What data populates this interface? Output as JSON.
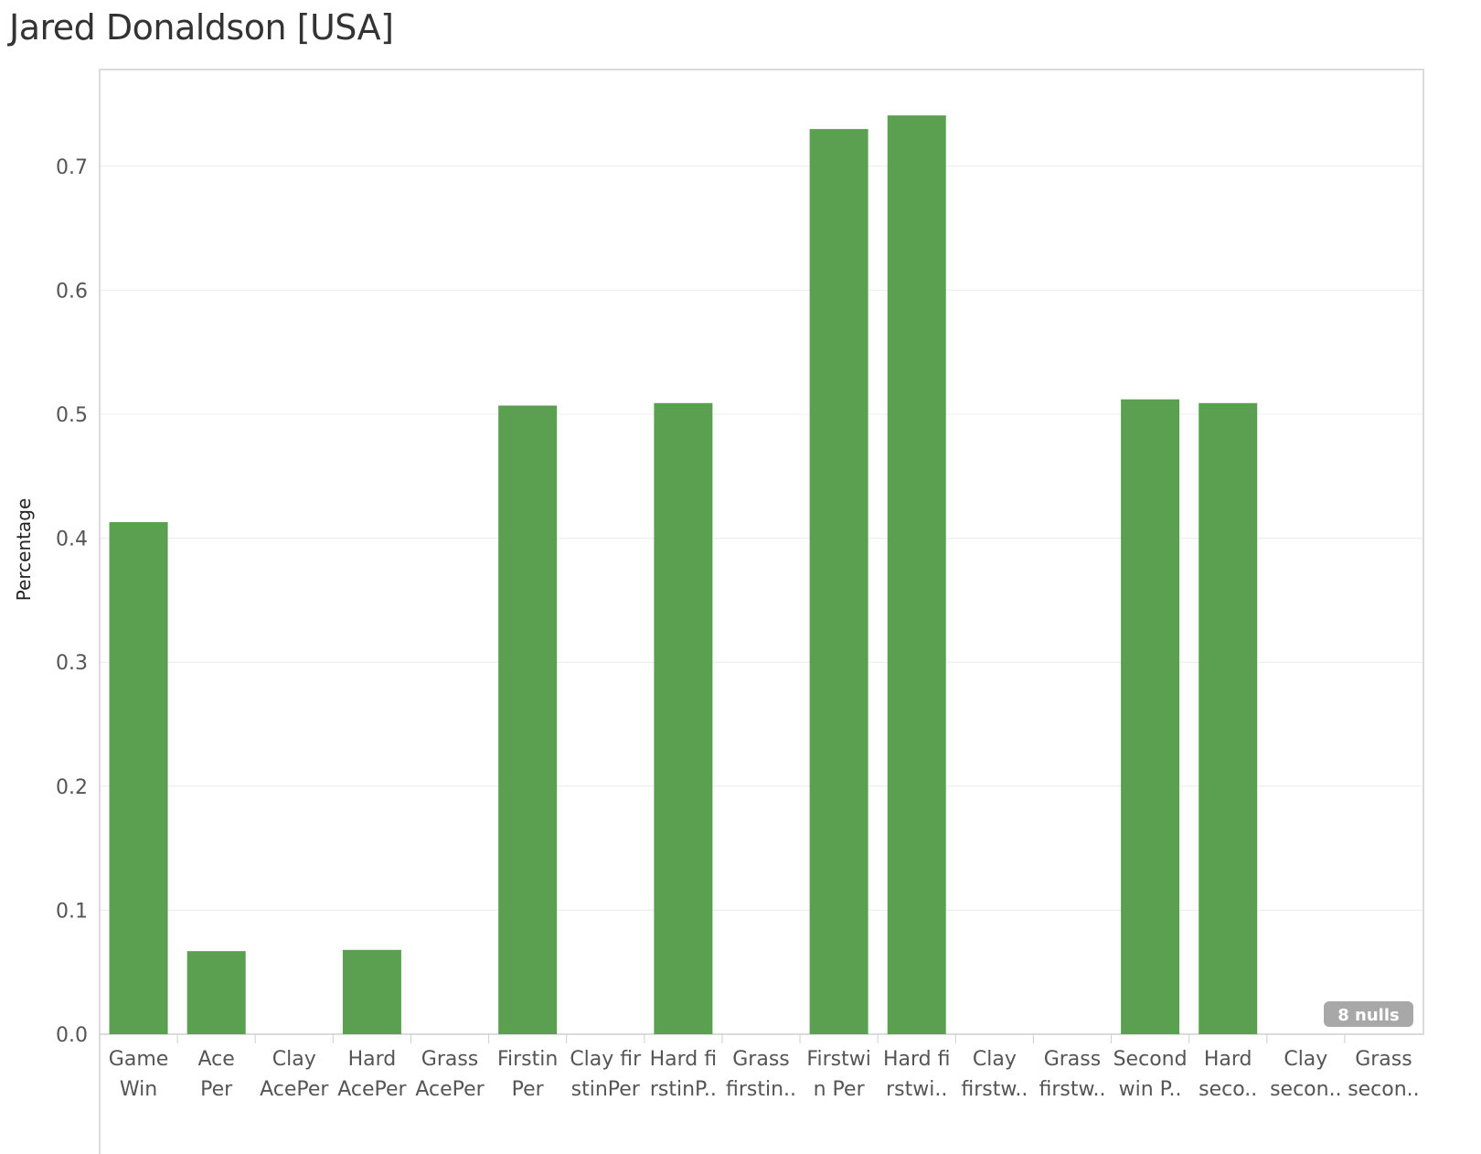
{
  "title": "Jared Donaldson [USA]",
  "colors": {
    "bar": "#5aa050",
    "grid": "#ececec",
    "axis": "#cfcfcf",
    "badge": "#a8a8a8"
  },
  "null_indicator": "8 nulls",
  "chart_data": {
    "type": "bar",
    "title": "Jared Donaldson [USA]",
    "ylabel": "Percentage",
    "xlabel": "",
    "ylim": [
      0,
      0.78
    ],
    "yticks": [
      0.0,
      0.1,
      0.2,
      0.3,
      0.4,
      0.5,
      0.6,
      0.7
    ],
    "ytick_labels": [
      "0.0",
      "0.1",
      "0.2",
      "0.3",
      "0.4",
      "0.5",
      "0.6",
      "0.7"
    ],
    "grid": "horizontal",
    "categories": [
      [
        "Game",
        "Win"
      ],
      [
        "Ace",
        "Per"
      ],
      [
        "Clay",
        "AcePer"
      ],
      [
        "Hard",
        "AcePer"
      ],
      [
        "Grass",
        "AcePer"
      ],
      [
        "Firstin",
        "Per"
      ],
      [
        "Clay fir",
        "stinPer"
      ],
      [
        "Hard fi",
        "rstinP.."
      ],
      [
        "Grass",
        "firstin.."
      ],
      [
        "Firstwi",
        "n Per"
      ],
      [
        "Hard fi",
        "rstwi.."
      ],
      [
        "Clay",
        "firstw.."
      ],
      [
        "Grass",
        "firstw.."
      ],
      [
        "Second",
        "win P.."
      ],
      [
        "Hard",
        "seco.."
      ],
      [
        "Clay",
        "secon.."
      ],
      [
        "Grass",
        "secon.."
      ]
    ],
    "values": [
      0.413,
      0.067,
      null,
      0.068,
      null,
      0.507,
      null,
      0.509,
      null,
      0.73,
      0.741,
      null,
      null,
      0.512,
      0.509,
      null,
      null
    ]
  }
}
